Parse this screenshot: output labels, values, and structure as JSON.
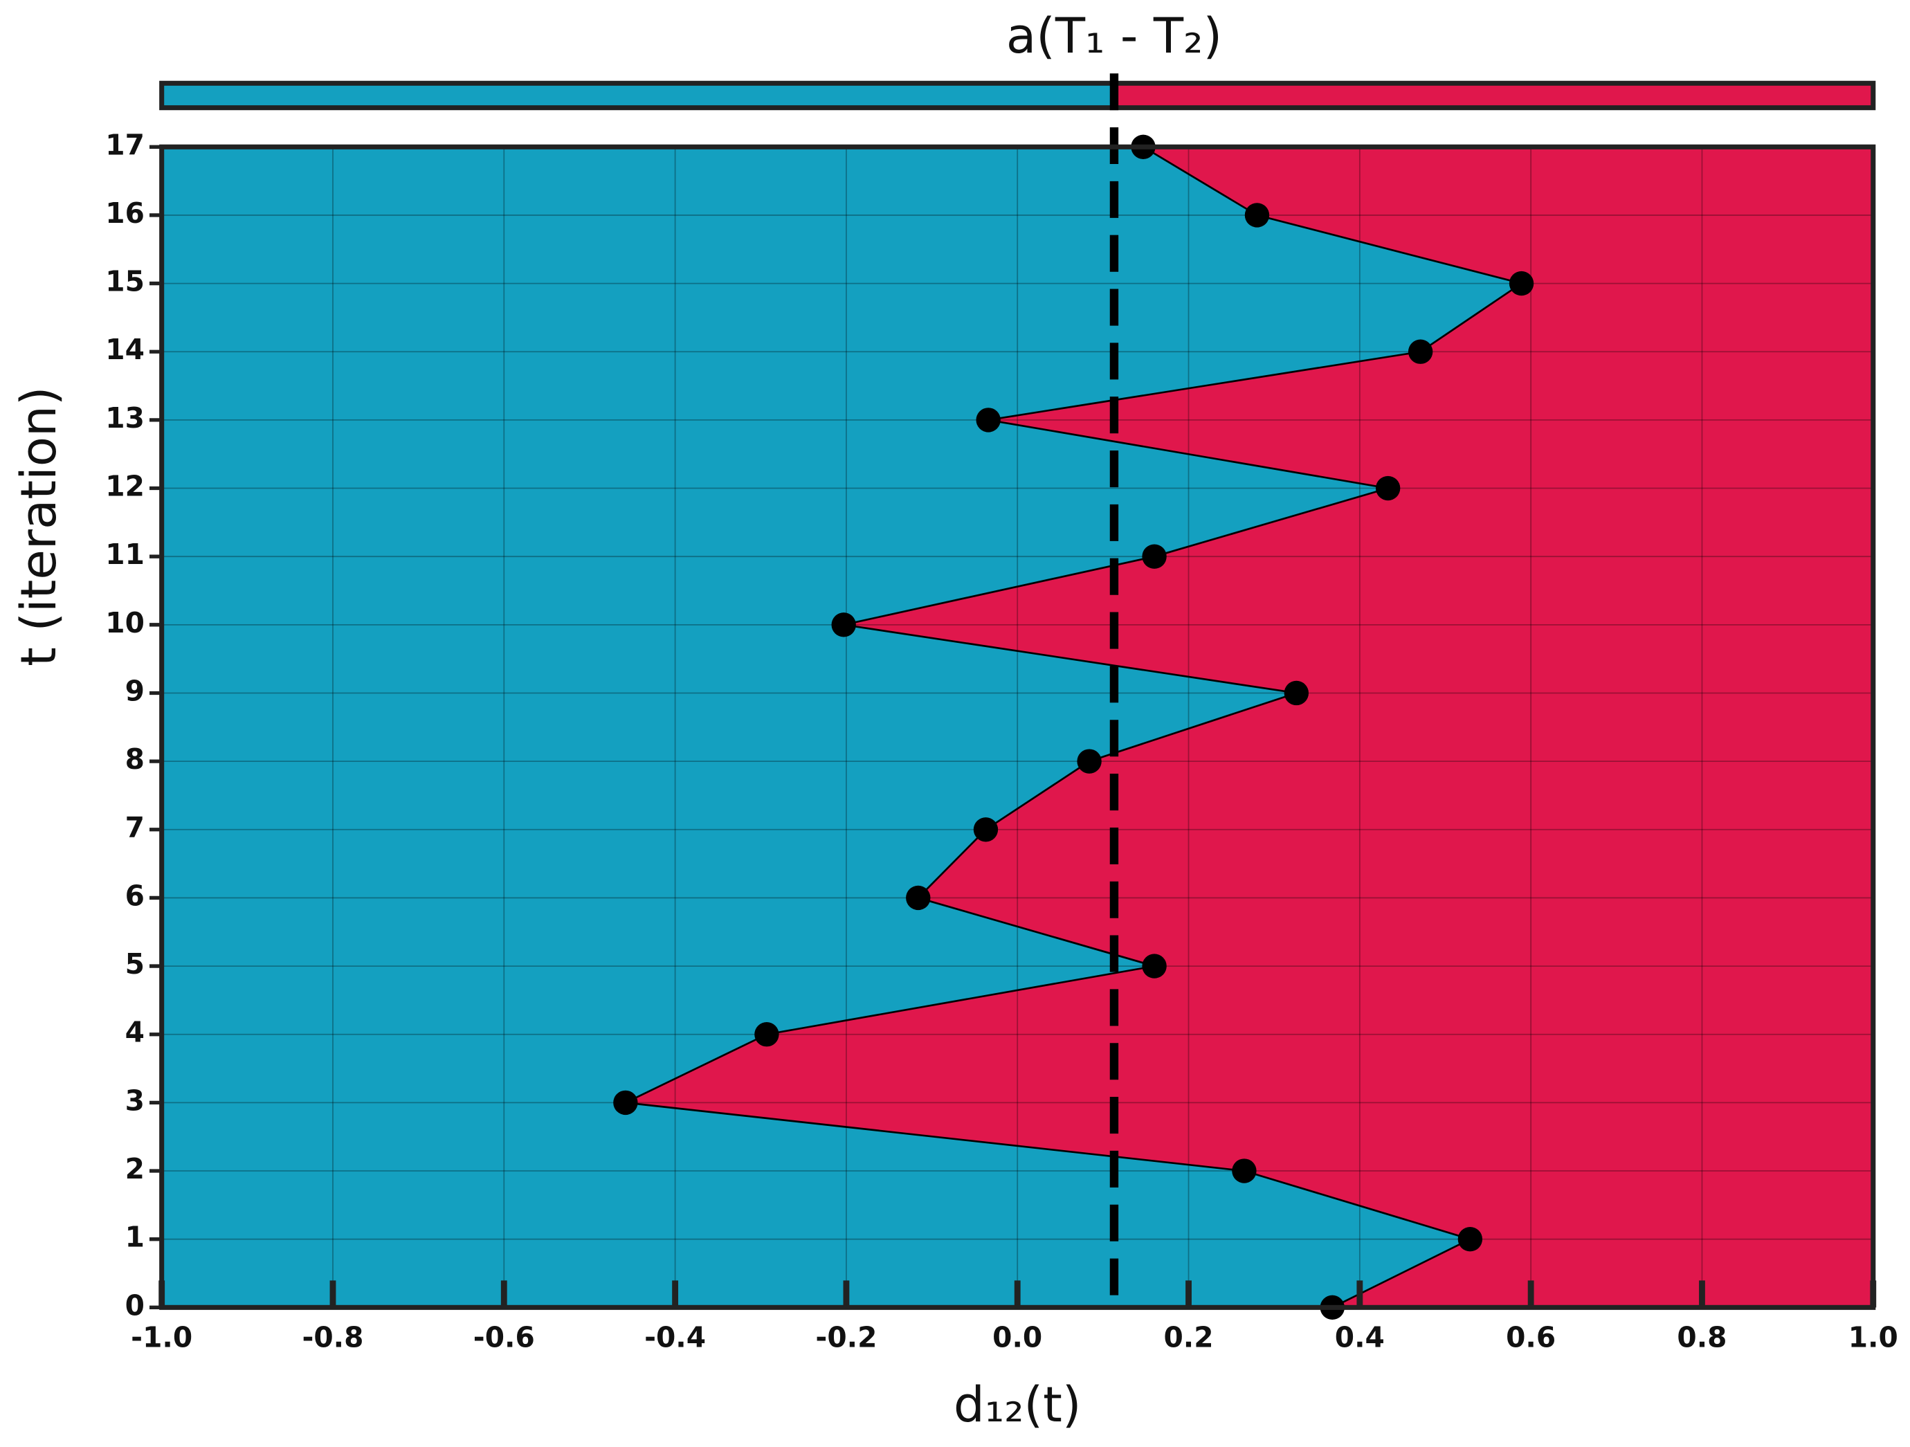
{
  "chart_data": {
    "type": "line",
    "title": "a(T₁ - T₂)",
    "xlabel": "d₁₂(t)",
    "ylabel": "t (iteration)",
    "series": [
      {
        "color": "#000000",
        "x": [
          0.368,
          0.529,
          0.265,
          -0.458,
          -0.293,
          0.16,
          -0.116,
          -0.037,
          0.084,
          0.326,
          -0.203,
          0.16,
          0.433,
          -0.034,
          0.471,
          0.589,
          0.28,
          0.147
        ],
        "values": [
          0,
          1,
          2,
          3,
          4,
          5,
          6,
          7,
          8,
          9,
          10,
          11,
          12,
          13,
          14,
          15,
          16,
          17
        ]
      }
    ],
    "threshold": 0.113,
    "left_color": "#14a0c0",
    "right_color": "#e0174c",
    "xlim": [
      -1,
      1
    ],
    "xticks": [
      {
        "value": -1,
        "label": "-1.0"
      },
      -0.8,
      -0.6,
      -0.4,
      -0.2,
      {
        "value": 0,
        "label": "0.0"
      },
      0.2,
      0.4,
      0.6,
      0.8,
      {
        "value": 1,
        "label": "1.0"
      }
    ],
    "ylim": [
      0,
      17
    ],
    "yticks": [
      0,
      1,
      2,
      3,
      4,
      5,
      6,
      7,
      8,
      9,
      10,
      11,
      12,
      13,
      14,
      15,
      16,
      17
    ],
    "grid": true
  }
}
